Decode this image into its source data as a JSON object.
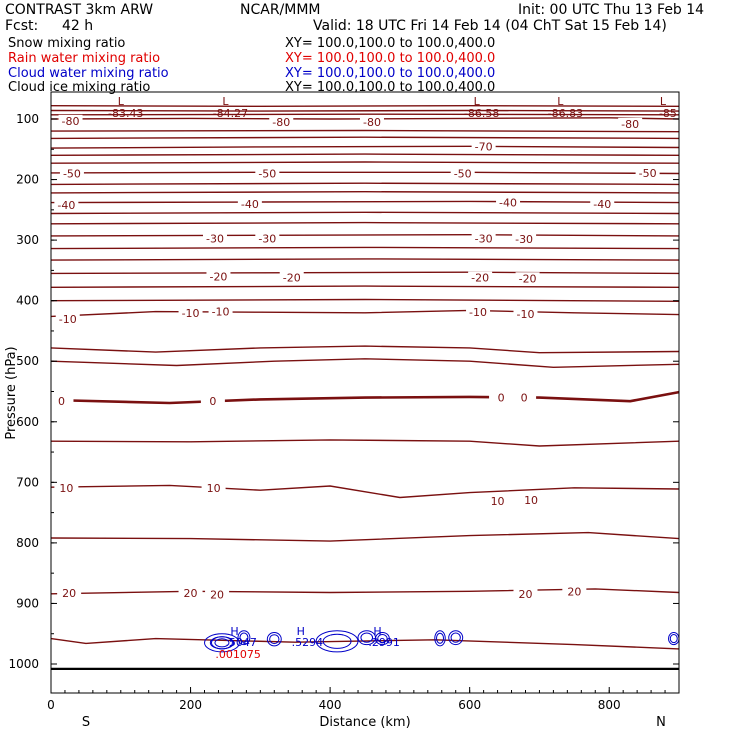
{
  "header": {
    "model": "CONTRAST  3km ARW",
    "org": "NCAR/MMM",
    "init": "Init: 00 UTC Thu 13 Feb 14",
    "fcst_label": "Fcst:",
    "fcst_value": "42 h",
    "valid": "Valid: 18 UTC Fri 14 Feb 14 (04 ChT Sat 15 Feb 14)"
  },
  "fields": [
    {
      "name": "Snow mixing ratio",
      "xy": "XY= 100.0,100.0 to 100.0,400.0",
      "color": "#000000"
    },
    {
      "name": "Rain water mixing ratio",
      "xy": "XY= 100.0,100.0 to 100.0,400.0",
      "color": "#e00000"
    },
    {
      "name": "Cloud water mixing ratio",
      "xy": "XY= 100.0,100.0 to 100.0,400.0",
      "color": "#0000c8"
    },
    {
      "name": "Cloud ice mixing ratio",
      "xy": "XY= 100.0,100.0 to 100.0,400.0",
      "color": "#000000"
    }
  ],
  "chart_data": {
    "type": "contour",
    "xlabel": "Distance (km)",
    "ylabel": "Pressure (hPa)",
    "xlim": [
      0,
      900
    ],
    "ylim_hpa": [
      1050,
      65
    ],
    "x_ticks": [
      "0",
      "200",
      "400",
      "600",
      "800"
    ],
    "y_ticks": [
      "100",
      "200",
      "300",
      "400",
      "500",
      "600",
      "700",
      "800",
      "900",
      "1000"
    ],
    "end_labels": {
      "left": "S",
      "right": "N"
    },
    "contour_color": "#7a1010",
    "isotherms": [
      {
        "value": -80,
        "points": [
          [
            0,
            100
          ],
          [
            200,
            99
          ],
          [
            400,
            100
          ],
          [
            600,
            99
          ],
          [
            800,
            98
          ],
          [
            900,
            100
          ]
        ],
        "labels": [
          {
            "text": "-80",
            "x": 28,
            "p": 103
          },
          {
            "text": "-80",
            "x": 330,
            "p": 105
          },
          {
            "text": "-80",
            "x": 460,
            "p": 105
          },
          {
            "text": "-80",
            "x": 830,
            "p": 108
          }
        ]
      },
      {
        "value": -70,
        "points": [
          [
            0,
            148
          ],
          [
            300,
            146
          ],
          [
            600,
            145
          ],
          [
            900,
            147
          ]
        ],
        "labels": [
          {
            "text": "-70",
            "x": 620,
            "p": 145
          }
        ]
      },
      {
        "value": -50,
        "points": [
          [
            0,
            189
          ],
          [
            300,
            188
          ],
          [
            600,
            188
          ],
          [
            900,
            190
          ]
        ],
        "labels": [
          {
            "text": "-50",
            "x": 30,
            "p": 190
          },
          {
            "text": "-50",
            "x": 310,
            "p": 190
          },
          {
            "text": "-50",
            "x": 590,
            "p": 190
          },
          {
            "text": "-50",
            "x": 855,
            "p": 189
          }
        ]
      },
      {
        "value": -40,
        "points": [
          [
            0,
            238
          ],
          [
            300,
            237
          ],
          [
            600,
            236
          ],
          [
            900,
            238
          ]
        ],
        "labels": [
          {
            "text": "-40",
            "x": 22,
            "p": 242
          },
          {
            "text": "-40",
            "x": 285,
            "p": 240
          },
          {
            "text": "-40",
            "x": 655,
            "p": 238
          },
          {
            "text": "-40",
            "x": 790,
            "p": 240
          }
        ]
      },
      {
        "value": -30,
        "points": [
          [
            0,
            293
          ],
          [
            300,
            292
          ],
          [
            600,
            291
          ],
          [
            900,
            293
          ]
        ],
        "labels": [
          {
            "text": "-30",
            "x": 235,
            "p": 297
          },
          {
            "text": "-30",
            "x": 310,
            "p": 297
          },
          {
            "text": "-30",
            "x": 620,
            "p": 297
          },
          {
            "text": "-30",
            "x": 678,
            "p": 298
          }
        ]
      },
      {
        "value": -20,
        "points": [
          [
            0,
            355
          ],
          [
            300,
            354
          ],
          [
            600,
            353
          ],
          [
            900,
            355
          ]
        ],
        "labels": [
          {
            "text": "-20",
            "x": 240,
            "p": 360
          },
          {
            "text": "-20",
            "x": 345,
            "p": 362
          },
          {
            "text": "-20",
            "x": 615,
            "p": 362
          },
          {
            "text": "-20",
            "x": 683,
            "p": 363
          }
        ]
      },
      {
        "value": -10,
        "points": [
          [
            0,
            426
          ],
          [
            150,
            418
          ],
          [
            300,
            419
          ],
          [
            450,
            420
          ],
          [
            600,
            416
          ],
          [
            750,
            420
          ],
          [
            900,
            423
          ]
        ],
        "labels": [
          {
            "text": "-10",
            "x": 24,
            "p": 430
          },
          {
            "text": "-10",
            "x": 200,
            "p": 420
          },
          {
            "text": "-10",
            "x": 243,
            "p": 418
          },
          {
            "text": "-10",
            "x": 612,
            "p": 419
          },
          {
            "text": "-10",
            "x": 680,
            "p": 422
          }
        ]
      },
      {
        "value": 0,
        "points": [
          [
            0,
            564
          ],
          [
            170,
            569
          ],
          [
            300,
            563
          ],
          [
            450,
            560
          ],
          [
            600,
            559
          ],
          [
            700,
            560
          ],
          [
            830,
            566
          ],
          [
            900,
            551
          ]
        ],
        "labels": [
          {
            "text": "0",
            "x": 15,
            "p": 566
          },
          {
            "text": "0",
            "x": 232,
            "p": 566
          },
          {
            "text": "0",
            "x": 645,
            "p": 560
          },
          {
            "text": "0",
            "x": 678,
            "p": 560
          }
        ]
      },
      {
        "value": 10,
        "points": [
          [
            0,
            708
          ],
          [
            170,
            705
          ],
          [
            300,
            713
          ],
          [
            400,
            706
          ],
          [
            500,
            725
          ],
          [
            600,
            717
          ],
          [
            750,
            709
          ],
          [
            900,
            711
          ]
        ],
        "labels": [
          {
            "text": "10",
            "x": 22,
            "p": 709
          },
          {
            "text": "10",
            "x": 233,
            "p": 709
          },
          {
            "text": "10",
            "x": 640,
            "p": 731
          },
          {
            "text": "10",
            "x": 688,
            "p": 729
          }
        ]
      },
      {
        "value": 20,
        "points": [
          [
            0,
            884
          ],
          [
            200,
            880
          ],
          [
            400,
            882
          ],
          [
            600,
            880
          ],
          [
            780,
            876
          ],
          [
            900,
            882
          ]
        ],
        "labels": [
          {
            "text": "20",
            "x": 26,
            "p": 883
          },
          {
            "text": "20",
            "x": 200,
            "p": 883
          },
          {
            "text": "20",
            "x": 238,
            "p": 885
          },
          {
            "text": "20",
            "x": 680,
            "p": 884
          },
          {
            "text": "20",
            "x": 750,
            "p": 880
          }
        ]
      }
    ],
    "plain_contours": [
      [
        [
          0,
          78
        ],
        [
          300,
          79
        ],
        [
          600,
          78
        ],
        [
          900,
          79
        ]
      ],
      [
        [
          0,
          86
        ],
        [
          300,
          87
        ],
        [
          600,
          86
        ],
        [
          900,
          87
        ]
      ],
      [
        [
          0,
          93
        ],
        [
          450,
          92
        ],
        [
          900,
          93
        ]
      ],
      [
        [
          0,
          120
        ],
        [
          450,
          119
        ],
        [
          900,
          121
        ]
      ],
      [
        [
          0,
          132
        ],
        [
          450,
          130
        ],
        [
          900,
          132
        ]
      ],
      [
        [
          0,
          160
        ],
        [
          450,
          158
        ],
        [
          900,
          160
        ]
      ],
      [
        [
          0,
          173
        ],
        [
          450,
          171
        ],
        [
          900,
          173
        ]
      ],
      [
        [
          0,
          208
        ],
        [
          450,
          206
        ],
        [
          900,
          208
        ]
      ],
      [
        [
          0,
          222
        ],
        [
          450,
          220
        ],
        [
          900,
          222
        ]
      ],
      [
        [
          0,
          256
        ],
        [
          450,
          254
        ],
        [
          900,
          256
        ]
      ],
      [
        [
          0,
          273
        ],
        [
          450,
          271
        ],
        [
          900,
          273
        ]
      ],
      [
        [
          0,
          314
        ],
        [
          450,
          312
        ],
        [
          900,
          314
        ]
      ],
      [
        [
          0,
          333
        ],
        [
          450,
          331
        ],
        [
          900,
          333
        ]
      ],
      [
        [
          0,
          378
        ],
        [
          450,
          376
        ],
        [
          900,
          378
        ]
      ],
      [
        [
          0,
          400
        ],
        [
          450,
          398
        ],
        [
          900,
          401
        ]
      ],
      [
        [
          0,
          478
        ],
        [
          150,
          485
        ],
        [
          300,
          478
        ],
        [
          450,
          475
        ],
        [
          600,
          478
        ],
        [
          700,
          486
        ],
        [
          900,
          484
        ]
      ],
      [
        [
          0,
          500
        ],
        [
          180,
          507
        ],
        [
          320,
          500
        ],
        [
          450,
          496
        ],
        [
          600,
          500
        ],
        [
          720,
          510
        ],
        [
          900,
          505
        ]
      ],
      [
        [
          0,
          632
        ],
        [
          200,
          633
        ],
        [
          400,
          630
        ],
        [
          600,
          632
        ],
        [
          700,
          640
        ],
        [
          900,
          632
        ]
      ],
      [
        [
          0,
          792
        ],
        [
          200,
          793
        ],
        [
          400,
          797
        ],
        [
          600,
          788
        ],
        [
          770,
          783
        ],
        [
          900,
          793
        ]
      ],
      [
        [
          0,
          958
        ],
        [
          50,
          966
        ],
        [
          150,
          958
        ],
        [
          350,
          964
        ],
        [
          550,
          960
        ],
        [
          750,
          968
        ],
        [
          900,
          975
        ]
      ]
    ],
    "extremes_L": [
      {
        "label": "L",
        "value": "-83.43",
        "x": 100
      },
      {
        "label": "L",
        "value": "-84.27",
        "x": 250
      },
      {
        "label": "L",
        "value": "-86.58",
        "x": 610
      },
      {
        "label": "L",
        "value": "-86.83",
        "x": 730
      },
      {
        "label": "L",
        "value": "-85",
        "x": 877
      }
    ],
    "cloud_highs": [
      {
        "label": "H",
        "value": ".5047",
        "x": 300
      },
      {
        "label": "H",
        "value": ".5294",
        "x": 395
      },
      {
        "label": "H",
        "value": ".2991",
        "x": 505
      }
    ],
    "rain_annotation": ".001075",
    "cloud_water_contours": [
      {
        "x0": 220,
        "x1": 270,
        "p0": 950,
        "p1": 980
      },
      {
        "x0": 230,
        "x1": 260,
        "p0": 955,
        "p1": 975
      },
      {
        "x0": 268,
        "x1": 285,
        "p0": 945,
        "p1": 968
      },
      {
        "x0": 310,
        "x1": 330,
        "p0": 948,
        "p1": 970
      },
      {
        "x0": 380,
        "x1": 440,
        "p0": 945,
        "p1": 980
      },
      {
        "x0": 440,
        "x1": 465,
        "p0": 945,
        "p1": 968
      },
      {
        "x0": 465,
        "x1": 485,
        "p0": 948,
        "p1": 968
      },
      {
        "x0": 550,
        "x1": 565,
        "p0": 945,
        "p1": 970
      },
      {
        "x0": 570,
        "x1": 590,
        "p0": 945,
        "p1": 968
      },
      {
        "x0": 885,
        "x1": 900,
        "p0": 948,
        "p1": 968
      }
    ],
    "ground_p_hpa": 1008
  }
}
